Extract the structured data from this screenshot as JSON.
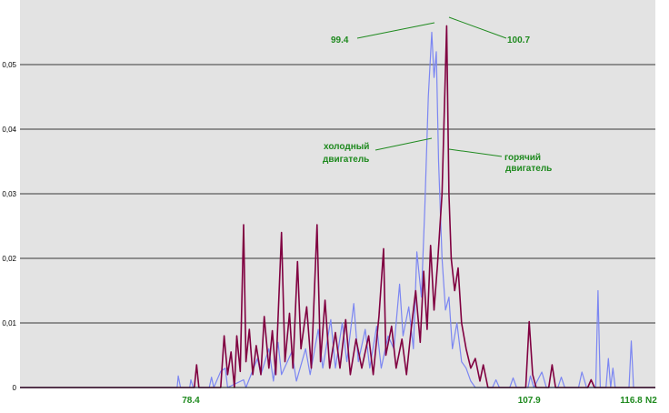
{
  "chart_data": {
    "type": "line",
    "title": "",
    "xlabel": "N2",
    "ylabel": "",
    "xlim": [
      63.5,
      118.9
    ],
    "ylim": [
      0,
      0.06
    ],
    "grid": true,
    "yticks": [
      "0",
      "0,01",
      "0,02",
      "0,03",
      "0,04",
      "0,05"
    ],
    "xticks": [
      {
        "value": 78.4,
        "label": "78.4"
      },
      {
        "value": 107.9,
        "label": "107.9"
      },
      {
        "value": 116.8,
        "label": "116.8"
      }
    ],
    "colors": {
      "plot_bg": "#e3e3e3",
      "grid": "#000000",
      "cold": "#7b86f2",
      "hot": "#800040",
      "annotation": "#1f8a1f"
    },
    "series": [
      {
        "key": "cold",
        "points": [
          [
            63.5,
            0
          ],
          [
            77.2,
            0
          ],
          [
            77.3,
            0.0018
          ],
          [
            77.5,
            0
          ],
          [
            78.3,
            0
          ],
          [
            78.4,
            0.0012
          ],
          [
            78.6,
            0
          ],
          [
            80.0,
            0
          ],
          [
            80.2,
            0.0016
          ],
          [
            80.4,
            0
          ],
          [
            81.0,
            0.0025
          ],
          [
            81.4,
            0.003
          ],
          [
            81.6,
            0
          ],
          [
            83.0,
            0.0012
          ],
          [
            83.2,
            0
          ],
          [
            84.2,
            0.0045
          ],
          [
            84.5,
            0.002
          ],
          [
            85.2,
            0.006
          ],
          [
            85.6,
            0.001
          ],
          [
            86.0,
            0.007
          ],
          [
            86.3,
            0.002
          ],
          [
            87.2,
            0.0055
          ],
          [
            87.6,
            0.001
          ],
          [
            88.4,
            0.006
          ],
          [
            88.8,
            0.002
          ],
          [
            89.5,
            0.009
          ],
          [
            89.9,
            0.003
          ],
          [
            90.6,
            0.0105
          ],
          [
            91.0,
            0.003
          ],
          [
            91.6,
            0.01
          ],
          [
            92.0,
            0.004
          ],
          [
            92.6,
            0.013
          ],
          [
            93.0,
            0.004
          ],
          [
            93.6,
            0.009
          ],
          [
            94.0,
            0.003
          ],
          [
            94.6,
            0.0095
          ],
          [
            95.0,
            0.003
          ],
          [
            95.6,
            0.008
          ],
          [
            96.1,
            0.006
          ],
          [
            96.6,
            0.016
          ],
          [
            96.9,
            0.008
          ],
          [
            97.4,
            0.0125
          ],
          [
            97.8,
            0.006
          ],
          [
            98.1,
            0.021
          ],
          [
            98.5,
            0.014
          ],
          [
            98.8,
            0.028
          ],
          [
            99.1,
            0.045
          ],
          [
            99.4,
            0.055
          ],
          [
            99.6,
            0.048
          ],
          [
            99.8,
            0.052
          ],
          [
            100.0,
            0.035
          ],
          [
            100.3,
            0.02
          ],
          [
            100.6,
            0.012
          ],
          [
            100.9,
            0.014
          ],
          [
            101.2,
            0.006
          ],
          [
            101.6,
            0.01
          ],
          [
            102.0,
            0.004
          ],
          [
            102.4,
            0.003
          ],
          [
            102.8,
            0.001
          ],
          [
            103.2,
            0
          ],
          [
            104.7,
            0
          ],
          [
            105.0,
            0.0012
          ],
          [
            105.3,
            0
          ],
          [
            106.2,
            0
          ],
          [
            106.5,
            0.0015
          ],
          [
            106.8,
            0
          ],
          [
            107.8,
            0
          ],
          [
            108.0,
            0.0018
          ],
          [
            108.3,
            0
          ],
          [
            109.0,
            0.0024
          ],
          [
            109.4,
            0
          ],
          [
            110.4,
            0
          ],
          [
            110.7,
            0.0016
          ],
          [
            111.0,
            0
          ],
          [
            112.2,
            0
          ],
          [
            112.5,
            0.0024
          ],
          [
            112.9,
            0
          ],
          [
            113.7,
            0
          ],
          [
            113.9,
            0.015
          ],
          [
            114.1,
            0
          ],
          [
            114.6,
            0
          ],
          [
            114.8,
            0.0045
          ],
          [
            115.0,
            0
          ],
          [
            115.2,
            0.003
          ],
          [
            115.4,
            0
          ],
          [
            116.6,
            0
          ],
          [
            116.8,
            0.0072
          ],
          [
            117.0,
            0
          ],
          [
            118.9,
            0
          ]
        ]
      },
      {
        "key": "hot",
        "points": [
          [
            63.5,
            0
          ],
          [
            78.7,
            0
          ],
          [
            78.9,
            0.0035
          ],
          [
            79.1,
            0
          ],
          [
            81.0,
            0
          ],
          [
            81.3,
            0.008
          ],
          [
            81.6,
            0.002
          ],
          [
            81.9,
            0.0055
          ],
          [
            82.2,
            0
          ],
          [
            82.4,
            0.008
          ],
          [
            82.7,
            0.0025
          ],
          [
            83.0,
            0.0252
          ],
          [
            83.2,
            0.004
          ],
          [
            83.5,
            0.009
          ],
          [
            83.8,
            0.002
          ],
          [
            84.1,
            0.0065
          ],
          [
            84.5,
            0.002
          ],
          [
            84.8,
            0.011
          ],
          [
            85.2,
            0.003
          ],
          [
            85.5,
            0.0088
          ],
          [
            85.8,
            0.002
          ],
          [
            86.3,
            0.024
          ],
          [
            86.6,
            0.004
          ],
          [
            87.0,
            0.0115
          ],
          [
            87.3,
            0.003
          ],
          [
            87.7,
            0.0195
          ],
          [
            88.0,
            0.006
          ],
          [
            88.5,
            0.0125
          ],
          [
            88.9,
            0.003
          ],
          [
            89.4,
            0.0252
          ],
          [
            89.7,
            0.004
          ],
          [
            90.1,
            0.0135
          ],
          [
            90.5,
            0.003
          ],
          [
            91.0,
            0.0085
          ],
          [
            91.4,
            0.003
          ],
          [
            91.9,
            0.0105
          ],
          [
            92.3,
            0.002
          ],
          [
            92.8,
            0.0075
          ],
          [
            93.3,
            0.003
          ],
          [
            93.9,
            0.008
          ],
          [
            94.3,
            0.002
          ],
          [
            94.8,
            0.011
          ],
          [
            95.2,
            0.0215
          ],
          [
            95.4,
            0.005
          ],
          [
            95.9,
            0.0095
          ],
          [
            96.3,
            0.003
          ],
          [
            96.8,
            0.0075
          ],
          [
            97.2,
            0.002
          ],
          [
            97.6,
            0.009
          ],
          [
            98.0,
            0.015
          ],
          [
            98.4,
            0.007
          ],
          [
            98.7,
            0.018
          ],
          [
            99.0,
            0.009
          ],
          [
            99.3,
            0.022
          ],
          [
            99.6,
            0.012
          ],
          [
            99.9,
            0.019
          ],
          [
            100.3,
            0.03
          ],
          [
            100.7,
            0.056
          ],
          [
            100.9,
            0.03
          ],
          [
            101.1,
            0.02
          ],
          [
            101.4,
            0.015
          ],
          [
            101.7,
            0.0185
          ],
          [
            102.0,
            0.01
          ],
          [
            102.4,
            0.006
          ],
          [
            102.8,
            0.003
          ],
          [
            103.2,
            0.0045
          ],
          [
            103.6,
            0.001
          ],
          [
            103.9,
            0.0035
          ],
          [
            104.3,
            0
          ],
          [
            107.6,
            0
          ],
          [
            107.9,
            0.0102
          ],
          [
            108.2,
            0.002
          ],
          [
            108.5,
            0
          ],
          [
            109.6,
            0
          ],
          [
            109.9,
            0.0035
          ],
          [
            110.2,
            0
          ],
          [
            113.0,
            0
          ],
          [
            113.3,
            0.0012
          ],
          [
            113.6,
            0
          ],
          [
            118.9,
            0
          ]
        ]
      }
    ],
    "annotations": {
      "peak_left": {
        "label": "99.4",
        "x": 99.4,
        "y": 0.055
      },
      "peak_right": {
        "label": "100.7",
        "x": 100.7,
        "y": 0.056
      },
      "cold_label": {
        "line1": "холодный",
        "line2": "двигатель"
      },
      "hot_label": {
        "line1": "горячий",
        "line2": "двигатель"
      }
    }
  }
}
